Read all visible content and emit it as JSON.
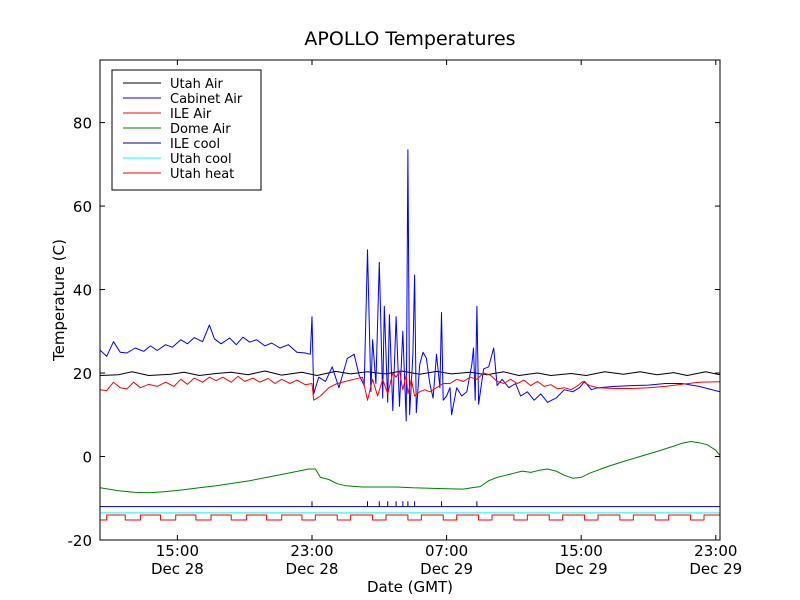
{
  "chart_data": {
    "type": "line",
    "title": "APOLLO Temperatures",
    "xlabel": "Date (GMT)",
    "ylabel": "Temperature (C)",
    "xlim": [
      10.4,
      47.25
    ],
    "ylim": [
      -20,
      95
    ],
    "yticks": [
      -20,
      0,
      20,
      40,
      60,
      80
    ],
    "xticks": [
      {
        "x": 15,
        "time": "15:00",
        "date": "Dec 28"
      },
      {
        "x": 23,
        "time": "23:00",
        "date": "Dec 28"
      },
      {
        "x": 31,
        "time": "07:00",
        "date": "Dec 29"
      },
      {
        "x": 39,
        "time": "15:00",
        "date": "Dec 29"
      },
      {
        "x": 47,
        "time": "23:00",
        "date": "Dec 29"
      }
    ],
    "x_unit": "hours since Dec 28 00:00 GMT",
    "legend_position": "top-left",
    "series": [
      {
        "name": "Utah Air",
        "color": "#000000",
        "points": [
          [
            10.4,
            19.4
          ],
          [
            11.5,
            19.6
          ],
          [
            12.3,
            20.3
          ],
          [
            13.3,
            19.4
          ],
          [
            14.6,
            19.7
          ],
          [
            15.4,
            20.2
          ],
          [
            16.3,
            19.4
          ],
          [
            17.3,
            19.9
          ],
          [
            18.2,
            20.2
          ],
          [
            19.2,
            19.6
          ],
          [
            20.2,
            20.5
          ],
          [
            21.2,
            19.5
          ],
          [
            22.4,
            20.2
          ],
          [
            23.3,
            19.4
          ],
          [
            24.4,
            20.4
          ],
          [
            25.3,
            19.8
          ],
          [
            26.3,
            20.3
          ],
          [
            27.4,
            19.8
          ],
          [
            28.3,
            20.5
          ],
          [
            29.4,
            19.7
          ],
          [
            30.4,
            20.4
          ],
          [
            31.3,
            19.8
          ],
          [
            32.4,
            20.2
          ],
          [
            33.4,
            19.6
          ],
          [
            34.4,
            20.3
          ],
          [
            35.3,
            19.4
          ],
          [
            36.4,
            20.0
          ],
          [
            37.2,
            19.4
          ],
          [
            38.4,
            19.9
          ],
          [
            39.3,
            19.4
          ],
          [
            40.4,
            20.3
          ],
          [
            41.5,
            19.7
          ],
          [
            42.5,
            20.3
          ],
          [
            43.5,
            19.6
          ],
          [
            44.5,
            20.1
          ],
          [
            45.3,
            19.4
          ],
          [
            46.4,
            20.3
          ],
          [
            47.25,
            19.6
          ]
        ]
      },
      {
        "name": "Cabinet Air",
        "color": "#0000ff",
        "points": [
          [
            10.4,
            25.5
          ],
          [
            10.8,
            24.0
          ],
          [
            11.2,
            27.5
          ],
          [
            11.6,
            25.0
          ],
          [
            12.0,
            24.8
          ],
          [
            12.5,
            26.0
          ],
          [
            13.0,
            25.2
          ],
          [
            13.4,
            26.5
          ],
          [
            13.8,
            25.4
          ],
          [
            14.3,
            26.8
          ],
          [
            14.7,
            26.2
          ],
          [
            15.2,
            28.0
          ],
          [
            15.6,
            27.0
          ],
          [
            16.0,
            28.5
          ],
          [
            16.5,
            27.5
          ],
          [
            16.9,
            31.5
          ],
          [
            17.2,
            28.2
          ],
          [
            17.6,
            27.0
          ],
          [
            18.1,
            28.4
          ],
          [
            18.5,
            26.8
          ],
          [
            18.9,
            28.6
          ],
          [
            19.3,
            27.4
          ],
          [
            19.7,
            28.0
          ],
          [
            20.2,
            26.5
          ],
          [
            20.6,
            27.2
          ],
          [
            21.1,
            26.0
          ],
          [
            21.6,
            26.8
          ],
          [
            22.1,
            25.0
          ],
          [
            22.6,
            24.8
          ],
          [
            22.9,
            24.5
          ],
          [
            23.0,
            33.5
          ],
          [
            23.1,
            15.0
          ],
          [
            23.4,
            19.0
          ],
          [
            23.8,
            18.0
          ],
          [
            24.2,
            21.5
          ],
          [
            24.6,
            16.5
          ],
          [
            25.1,
            23.5
          ],
          [
            25.5,
            24.5
          ],
          [
            25.8,
            19.5
          ],
          [
            26.1,
            17.0
          ],
          [
            26.3,
            49.5
          ],
          [
            26.5,
            15.5
          ],
          [
            26.6,
            28.0
          ],
          [
            26.8,
            17.5
          ],
          [
            27.0,
            46.5
          ],
          [
            27.2,
            14.0
          ],
          [
            27.3,
            36.0
          ],
          [
            27.5,
            13.0
          ],
          [
            27.6,
            34.0
          ],
          [
            27.8,
            11.0
          ],
          [
            28.0,
            33.5
          ],
          [
            28.2,
            12.0
          ],
          [
            28.4,
            30.0
          ],
          [
            28.6,
            8.5
          ],
          [
            28.7,
            73.5
          ],
          [
            28.8,
            10.0
          ],
          [
            29.0,
            24.5
          ],
          [
            29.1,
            43.5
          ],
          [
            29.2,
            10.5
          ],
          [
            29.4,
            22.0
          ],
          [
            29.6,
            25.0
          ],
          [
            29.8,
            23.5
          ],
          [
            30.0,
            17.5
          ],
          [
            30.2,
            14.0
          ],
          [
            30.4,
            24.5
          ],
          [
            30.6,
            16.5
          ],
          [
            30.7,
            34.5
          ],
          [
            30.8,
            13.5
          ],
          [
            31.0,
            14.5
          ],
          [
            31.2,
            16.5
          ],
          [
            31.3,
            10.0
          ],
          [
            31.6,
            16.5
          ],
          [
            31.9,
            14.5
          ],
          [
            32.2,
            15.5
          ],
          [
            32.5,
            22.0
          ],
          [
            32.6,
            26.0
          ],
          [
            32.7,
            13.5
          ],
          [
            32.8,
            36.0
          ],
          [
            32.9,
            12.5
          ],
          [
            33.2,
            21.0
          ],
          [
            33.5,
            21.5
          ],
          [
            33.8,
            26.0
          ],
          [
            34.0,
            17.0
          ],
          [
            34.3,
            18.5
          ],
          [
            34.7,
            16.5
          ],
          [
            35.1,
            17.5
          ],
          [
            35.4,
            14.5
          ],
          [
            35.8,
            15.5
          ],
          [
            36.2,
            13.5
          ],
          [
            36.6,
            15.0
          ],
          [
            37.0,
            13.0
          ],
          [
            37.5,
            14.0
          ],
          [
            38.0,
            16.0
          ],
          [
            38.5,
            15.5
          ],
          [
            38.9,
            16.5
          ],
          [
            39.2,
            18.0
          ],
          [
            39.6,
            16.0
          ],
          [
            40.0,
            16.5
          ],
          [
            41.0,
            16.8
          ],
          [
            42.0,
            17.0
          ],
          [
            43.0,
            17.1
          ],
          [
            44.0,
            17.5
          ],
          [
            45.0,
            17.5
          ],
          [
            46.0,
            16.8
          ],
          [
            47.25,
            15.5
          ]
        ]
      },
      {
        "name": "ILE Air",
        "color": "#ff0000",
        "points": [
          [
            10.4,
            16.0
          ],
          [
            10.8,
            15.8
          ],
          [
            11.2,
            17.8
          ],
          [
            11.6,
            16.5
          ],
          [
            12.0,
            16.2
          ],
          [
            12.4,
            17.8
          ],
          [
            12.8,
            16.5
          ],
          [
            13.3,
            17.3
          ],
          [
            13.8,
            16.8
          ],
          [
            14.3,
            17.8
          ],
          [
            14.8,
            16.8
          ],
          [
            15.2,
            18.5
          ],
          [
            15.6,
            17.3
          ],
          [
            16.0,
            18.8
          ],
          [
            16.5,
            17.8
          ],
          [
            16.9,
            19.0
          ],
          [
            17.3,
            18.2
          ],
          [
            17.7,
            19.0
          ],
          [
            18.2,
            17.8
          ],
          [
            18.6,
            19.2
          ],
          [
            19.0,
            18.0
          ],
          [
            19.5,
            18.8
          ],
          [
            19.9,
            17.8
          ],
          [
            20.4,
            18.7
          ],
          [
            20.8,
            17.5
          ],
          [
            21.2,
            18.5
          ],
          [
            21.7,
            17.5
          ],
          [
            22.1,
            18.3
          ],
          [
            22.6,
            17.2
          ],
          [
            23.0,
            17.5
          ],
          [
            23.1,
            13.5
          ],
          [
            23.5,
            14.5
          ],
          [
            24.0,
            16.5
          ],
          [
            24.5,
            17.5
          ],
          [
            25.0,
            18.0
          ],
          [
            25.5,
            18.5
          ],
          [
            26.0,
            19.0
          ],
          [
            26.3,
            13.5
          ],
          [
            26.6,
            18.5
          ],
          [
            26.9,
            14.5
          ],
          [
            27.2,
            18.5
          ],
          [
            27.5,
            15.0
          ],
          [
            27.8,
            20.0
          ],
          [
            28.0,
            19.0
          ],
          [
            28.2,
            20.5
          ],
          [
            28.4,
            16.0
          ],
          [
            28.6,
            19.5
          ],
          [
            28.7,
            15.0
          ],
          [
            28.9,
            18.5
          ],
          [
            29.1,
            14.5
          ],
          [
            29.4,
            15.5
          ],
          [
            29.7,
            16.0
          ],
          [
            30.0,
            15.5
          ],
          [
            30.4,
            16.5
          ],
          [
            30.8,
            17.5
          ],
          [
            31.2,
            17.5
          ],
          [
            31.6,
            18.5
          ],
          [
            32.0,
            18.0
          ],
          [
            32.4,
            19.0
          ],
          [
            32.8,
            18.5
          ],
          [
            33.2,
            20.0
          ],
          [
            33.6,
            19.5
          ],
          [
            34.0,
            18.0
          ],
          [
            34.4,
            17.5
          ],
          [
            34.8,
            18.5
          ],
          [
            35.2,
            17.5
          ],
          [
            35.6,
            18.3
          ],
          [
            36.0,
            17.0
          ],
          [
            36.4,
            18.0
          ],
          [
            36.8,
            16.8
          ],
          [
            37.2,
            17.2
          ],
          [
            37.6,
            16.2
          ],
          [
            38.0,
            16.5
          ],
          [
            38.4,
            16.0
          ],
          [
            38.8,
            17.0
          ],
          [
            39.1,
            18.0
          ],
          [
            39.5,
            17.0
          ],
          [
            40.0,
            16.5
          ],
          [
            41.0,
            16.3
          ],
          [
            42.0,
            16.3
          ],
          [
            43.0,
            16.5
          ],
          [
            44.0,
            16.8
          ],
          [
            45.0,
            17.3
          ],
          [
            46.0,
            17.8
          ],
          [
            47.25,
            17.9
          ]
        ]
      },
      {
        "name": "Dome Air",
        "color": "#008000",
        "points": [
          [
            10.4,
            -7.5
          ],
          [
            11.5,
            -8.2
          ],
          [
            12.5,
            -8.6
          ],
          [
            13.3,
            -8.7
          ],
          [
            14.3,
            -8.4
          ],
          [
            15.3,
            -8.0
          ],
          [
            16.3,
            -7.5
          ],
          [
            17.3,
            -7.0
          ],
          [
            18.3,
            -6.4
          ],
          [
            19.3,
            -5.8
          ],
          [
            20.3,
            -5.0
          ],
          [
            21.3,
            -4.2
          ],
          [
            22.3,
            -3.4
          ],
          [
            22.8,
            -3.0
          ],
          [
            23.2,
            -3.0
          ],
          [
            23.5,
            -5.0
          ],
          [
            24.0,
            -5.5
          ],
          [
            24.5,
            -6.5
          ],
          [
            25.0,
            -7.0
          ],
          [
            26.0,
            -7.3
          ],
          [
            27.0,
            -7.3
          ],
          [
            28.0,
            -7.3
          ],
          [
            29.0,
            -7.5
          ],
          [
            30.0,
            -7.6
          ],
          [
            31.0,
            -7.7
          ],
          [
            32.0,
            -7.8
          ],
          [
            32.5,
            -7.5
          ],
          [
            33.0,
            -7.2
          ],
          [
            33.5,
            -5.8
          ],
          [
            34.0,
            -5.0
          ],
          [
            34.5,
            -4.5
          ],
          [
            35.0,
            -4.0
          ],
          [
            35.5,
            -3.5
          ],
          [
            36.0,
            -3.8
          ],
          [
            36.5,
            -3.3
          ],
          [
            37.0,
            -3.0
          ],
          [
            37.5,
            -3.5
          ],
          [
            38.0,
            -4.5
          ],
          [
            38.5,
            -5.2
          ],
          [
            39.0,
            -5.0
          ],
          [
            39.5,
            -4.0
          ],
          [
            40.5,
            -2.5
          ],
          [
            41.5,
            -1.2
          ],
          [
            42.5,
            0.0
          ],
          [
            43.5,
            1.2
          ],
          [
            44.5,
            2.5
          ],
          [
            45.0,
            3.2
          ],
          [
            45.5,
            3.6
          ],
          [
            46.0,
            3.3
          ],
          [
            46.5,
            2.8
          ],
          [
            47.0,
            1.5
          ],
          [
            47.25,
            0.2
          ]
        ]
      },
      {
        "name": "ILE cool",
        "color": "#000080",
        "baseline": -12.0,
        "spike_top": -10.8,
        "spikes": [
          23.0,
          26.3,
          27.0,
          27.5,
          28.0,
          28.4,
          28.7,
          29.1,
          30.7,
          32.8
        ]
      },
      {
        "name": "Utah cool",
        "color": "#00ffff",
        "baseline": -13.5
      },
      {
        "name": "Utah heat",
        "color": "#ff0000",
        "high": -14.0,
        "low": -15.2,
        "low_intervals": [
          [
            10.4,
            10.8
          ],
          [
            11.9,
            12.8
          ],
          [
            14.0,
            14.9
          ],
          [
            16.1,
            17.0
          ],
          [
            18.2,
            19.1
          ],
          [
            20.3,
            21.2
          ],
          [
            22.4,
            23.2
          ],
          [
            24.5,
            25.3
          ],
          [
            26.6,
            27.4
          ],
          [
            28.7,
            29.5
          ],
          [
            30.8,
            31.6
          ],
          [
            32.9,
            33.7
          ],
          [
            35.0,
            35.8
          ],
          [
            37.1,
            37.9
          ],
          [
            39.2,
            40.0
          ],
          [
            41.3,
            42.1
          ],
          [
            43.4,
            44.2
          ],
          [
            45.5,
            46.3
          ]
        ]
      }
    ]
  }
}
